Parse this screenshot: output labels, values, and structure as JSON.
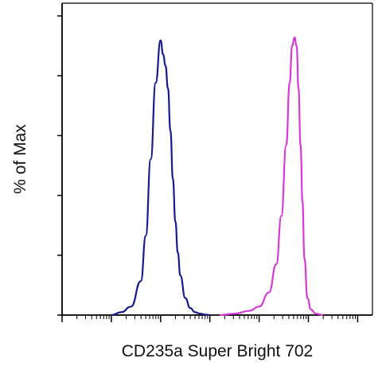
{
  "chart_data": {
    "type": "line",
    "title": "",
    "xlabel": "CD235a Super Bright 702",
    "ylabel": "% of Max",
    "x_scale": "log",
    "xlim": [
      -3,
      3.3
    ],
    "ylim": [
      0,
      100
    ],
    "grid": false,
    "legend": "none",
    "series": [
      {
        "color": "#1a1a8c",
        "x": [
          -2.0,
          -1.8,
          -1.6,
          -1.4,
          -1.3,
          -1.2,
          -1.1,
          -1.0,
          -0.95,
          -0.9,
          -0.85,
          -0.8,
          -0.75,
          -0.7,
          -0.65,
          -0.6,
          -0.5,
          -0.4,
          -0.3,
          -0.2,
          -0.1,
          0.0
        ],
        "y": [
          0,
          1,
          3,
          12,
          28,
          55,
          82,
          97,
          92,
          88,
          80,
          65,
          48,
          33,
          22,
          14,
          6,
          2.5,
          1,
          0.5,
          0.2,
          0
        ]
      },
      {
        "color": "#d63bd6",
        "x": [
          0.2,
          0.5,
          0.8,
          1.0,
          1.2,
          1.35,
          1.45,
          1.55,
          1.62,
          1.67,
          1.72,
          1.76,
          1.8,
          1.84,
          1.88,
          1.92,
          1.98,
          2.05,
          2.15,
          2.3
        ],
        "y": [
          0,
          0.5,
          1.5,
          3,
          8,
          18,
          35,
          60,
          82,
          95,
          98,
          95,
          80,
          60,
          40,
          20,
          6,
          2,
          0.5,
          0
        ]
      }
    ]
  }
}
